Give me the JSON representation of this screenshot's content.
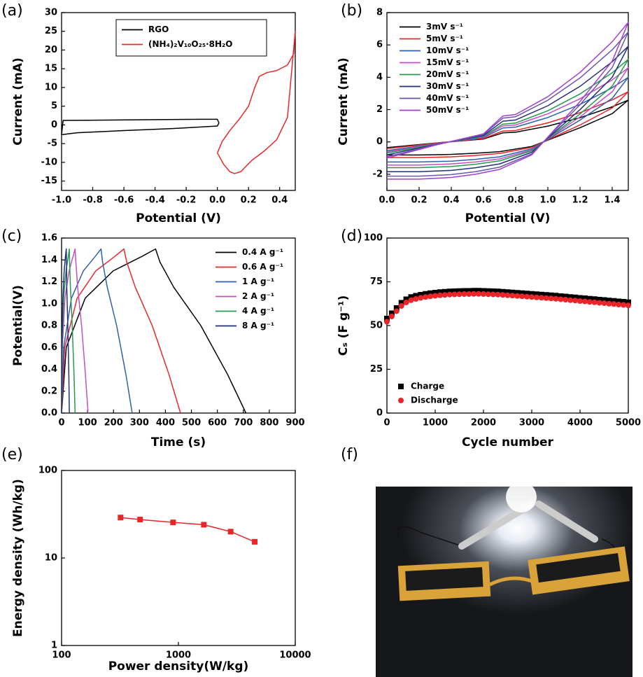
{
  "chart_data": [
    {
      "type": "line",
      "panel": "(a)",
      "xlabel": "Potential (V)",
      "ylabel": "Current (mA)",
      "xlim": [
        -1.0,
        0.5
      ],
      "ylim": [
        -17.5,
        30
      ],
      "xticks": [
        {
          "value": -1,
          "label": "-1.0"
        },
        -0.8,
        -0.6,
        -0.4,
        -0.2,
        {
          "value": 0,
          "label": "0.0"
        },
        0.2,
        0.4
      ],
      "yticks": [
        -15,
        -10,
        -5,
        0,
        5,
        10,
        15,
        20,
        25,
        30
      ],
      "legend": "upper center",
      "legend_frame": true,
      "series": [
        {
          "name": "RGO",
          "color": "#000000",
          "x": [
            -1.0,
            -0.99,
            -0.7,
            -0.4,
            -0.1,
            0.0,
            0.01,
            0.0,
            -0.3,
            -0.6,
            -0.9,
            -1.0
          ],
          "values": [
            -2.6,
            1.2,
            1.3,
            1.4,
            1.5,
            1.5,
            0.5,
            -0.3,
            -1.0,
            -1.5,
            -2.1,
            -2.6
          ]
        },
        {
          "name": "(NH₄)₂V₁₀O₂₅·8H₂O",
          "color": "#e8262a",
          "x": [
            0.0,
            0.04,
            0.08,
            0.11,
            0.15,
            0.22,
            0.3,
            0.38,
            0.45,
            0.5,
            0.49,
            0.45,
            0.38,
            0.32,
            0.27,
            0.24,
            0.2,
            0.14,
            0.08,
            0.03,
            0.0
          ],
          "values": [
            -7.5,
            -10.5,
            -12.5,
            -13.0,
            -12.5,
            -9.5,
            -7.0,
            -4.0,
            2.0,
            25.0,
            19.0,
            16.0,
            14.5,
            14.0,
            13.0,
            10.0,
            5.0,
            1.5,
            -1.5,
            -4.5,
            -7.5
          ]
        }
      ]
    },
    {
      "type": "line",
      "panel": "(b)",
      "xlabel": "Potential (V)",
      "ylabel": "Current (mA)",
      "xlim": [
        0,
        1.5
      ],
      "ylim": [
        -3,
        8
      ],
      "xticks": [
        {
          "value": 0,
          "label": "0.0"
        },
        0.2,
        0.4,
        0.6,
        0.8,
        {
          "value": 1,
          "label": "1.0"
        },
        1.2,
        1.4
      ],
      "yticks": [
        -2,
        0,
        2,
        4,
        6,
        8
      ],
      "legend": "upper left",
      "legend_frame": false,
      "x": [
        0.0,
        0.3,
        0.6,
        0.72,
        0.8,
        1.0,
        1.2,
        1.4,
        1.5,
        1.4,
        1.2,
        1.0,
        0.9,
        0.7,
        0.55,
        0.4,
        0.2,
        0.0
      ],
      "series": [
        {
          "name": "3mV s⁻¹",
          "color": "#000000",
          "values": [
            -0.35,
            -0.07,
            0.18,
            0.56,
            0.6,
            0.98,
            1.5,
            2.17,
            2.59,
            1.75,
            0.88,
            0.11,
            -0.28,
            -0.6,
            -0.7,
            -0.77,
            -0.81,
            -0.81
          ]
        },
        {
          "name": "5mV s⁻¹",
          "color": "#e8262a",
          "values": [
            -0.42,
            -0.08,
            0.21,
            0.67,
            0.71,
            1.18,
            1.81,
            2.6,
            3.11,
            2.1,
            1.05,
            0.13,
            -0.34,
            -0.71,
            -0.84,
            -0.92,
            -0.97,
            -0.97
          ]
        },
        {
          "name": "10mV s⁻¹",
          "color": "#2f5fb0",
          "values": [
            -0.54,
            -0.11,
            0.27,
            0.86,
            0.92,
            1.51,
            2.32,
            3.35,
            4.0,
            2.7,
            1.35,
            0.16,
            -0.43,
            -0.92,
            -1.08,
            -1.19,
            -1.24,
            -1.24
          ]
        },
        {
          "name": "15mV s⁻¹",
          "color": "#c34fc3",
          "values": [
            -0.62,
            -0.12,
            0.31,
            0.99,
            1.05,
            1.74,
            2.67,
            3.84,
            4.59,
            3.1,
            1.55,
            0.19,
            -0.5,
            -1.05,
            -1.24,
            -1.36,
            -1.43,
            -1.43
          ]
        },
        {
          "name": "20mV s⁻¹",
          "color": "#249a4e",
          "values": [
            -0.69,
            -0.14,
            0.35,
            1.1,
            1.17,
            1.93,
            2.97,
            4.28,
            5.11,
            3.45,
            1.73,
            0.21,
            -0.55,
            -1.17,
            -1.38,
            -1.52,
            -1.59,
            -1.59
          ]
        },
        {
          "name": "30mV s⁻¹",
          "color": "#23307a",
          "values": [
            -0.8,
            -0.16,
            0.4,
            1.28,
            1.36,
            2.24,
            3.44,
            4.96,
            5.92,
            4.0,
            2.0,
            0.24,
            -0.64,
            -1.36,
            -1.6,
            -1.76,
            -1.84,
            -1.84
          ]
        },
        {
          "name": "40mV s⁻¹",
          "color": "#6a55b0",
          "values": [
            -0.92,
            -0.18,
            0.46,
            1.47,
            1.56,
            2.58,
            3.96,
            5.7,
            6.81,
            4.6,
            2.3,
            0.28,
            -0.74,
            -1.56,
            -1.84,
            -2.02,
            -2.12,
            -2.12
          ]
        },
        {
          "name": "50mV s⁻¹",
          "color": "#a23fd0",
          "values": [
            -1.0,
            -0.2,
            0.5,
            1.6,
            1.7,
            2.8,
            4.3,
            6.2,
            7.4,
            5.0,
            2.5,
            0.3,
            -0.8,
            -1.7,
            -2.0,
            -2.2,
            -2.3,
            -2.3
          ]
        }
      ]
    },
    {
      "type": "line",
      "panel": "(c)",
      "xlabel": "Time (s)",
      "ylabel": "Potential(V)",
      "xlim": [
        0,
        900
      ],
      "ylim": [
        0,
        1.6
      ],
      "xticks": [
        0,
        100,
        200,
        300,
        400,
        500,
        600,
        700,
        800,
        900
      ],
      "yticks": [
        {
          "value": 0,
          "label": "0.0"
        },
        0.2,
        0.4,
        0.6,
        0.8,
        {
          "value": 1,
          "label": "1.0"
        },
        1.2,
        1.4,
        1.6
      ],
      "legend": "upper right",
      "legend_frame": false,
      "series": [
        {
          "name": "0.4 A g⁻¹",
          "color": "#000000",
          "x": [
            0,
            18,
            91,
            199,
            308,
            362,
            379,
            432,
            536,
            640,
            710
          ],
          "values": [
            0,
            0.6,
            1.05,
            1.3,
            1.43,
            1.5,
            1.38,
            1.15,
            0.8,
            0.35,
            0
          ]
        },
        {
          "name": "0.6 A g⁻¹",
          "color": "#e8262a",
          "x": [
            0,
            12,
            60,
            132,
            204,
            240,
            251,
            284,
            349,
            414,
            458
          ],
          "values": [
            0,
            0.6,
            1.05,
            1.3,
            1.43,
            1.5,
            1.38,
            1.15,
            0.8,
            0.35,
            0
          ]
        },
        {
          "name": "1 A g⁻¹",
          "color": "#2f5fb0",
          "x": [
            0,
            8,
            38,
            84,
            129,
            152,
            158,
            176,
            212,
            248,
            272
          ],
          "values": [
            0,
            0.6,
            1.05,
            1.3,
            1.43,
            1.5,
            1.38,
            1.15,
            0.8,
            0.35,
            0
          ]
        },
        {
          "name": "2 A g⁻¹",
          "color": "#c34fc3",
          "x": [
            0,
            3,
            13,
            29,
            44,
            52,
            55,
            62,
            77,
            92,
            102
          ],
          "values": [
            0,
            0.6,
            1.05,
            1.3,
            1.43,
            1.5,
            1.38,
            1.15,
            0.8,
            0.35,
            0
          ]
        },
        {
          "name": "4 A g⁻¹",
          "color": "#249a4e",
          "x": [
            0,
            2,
            8,
            17,
            26,
            30,
            31,
            34,
            41,
            48,
            52
          ],
          "values": [
            0,
            0.6,
            1.05,
            1.3,
            1.43,
            1.5,
            1.38,
            1.15,
            0.8,
            0.35,
            0
          ]
        },
        {
          "name": "8 A g⁻¹",
          "color": "#23307a",
          "x": [
            0,
            1,
            5,
            10,
            15,
            18,
            19,
            20,
            24,
            28,
            30
          ],
          "values": [
            0,
            0.6,
            1.05,
            1.3,
            1.43,
            1.5,
            1.38,
            1.15,
            0.8,
            0.35,
            0
          ]
        }
      ]
    },
    {
      "type": "scatter",
      "panel": "(d)",
      "xlabel": "Cycle  number",
      "ylabel": "Cₛ (F g⁻¹)",
      "xlim": [
        0,
        5000
      ],
      "ylim": [
        0,
        100
      ],
      "xticks": [
        0,
        1000,
        2000,
        3000,
        4000,
        5000
      ],
      "yticks": [
        0,
        25,
        50,
        75,
        100
      ],
      "legend": "lower left",
      "legend_frame": false,
      "x": [
        0,
        100,
        200,
        300,
        400,
        500,
        600,
        700,
        800,
        900,
        1000,
        1100,
        1200,
        1300,
        1400,
        1500,
        1600,
        1700,
        1800,
        1900,
        2000,
        2100,
        2200,
        2300,
        2400,
        2500,
        2600,
        2700,
        2800,
        2900,
        3000,
        3100,
        3200,
        3300,
        3400,
        3500,
        3600,
        3700,
        3800,
        3900,
        4000,
        4100,
        4200,
        4300,
        4400,
        4500,
        4600,
        4700,
        4800,
        4900,
        5000
      ],
      "series": [
        {
          "name": "Charge",
          "color": "#000000",
          "marker": "square",
          "values": [
            54,
            57,
            60,
            63,
            65,
            66.3,
            67,
            67.6,
            68.1,
            68.5,
            68.8,
            69.1,
            69.3,
            69.5,
            69.6,
            69.7,
            69.8,
            69.8,
            69.9,
            69.9,
            69.8,
            69.7,
            69.6,
            69.5,
            69.3,
            69.1,
            68.9,
            68.7,
            68.5,
            68.3,
            68.1,
            67.9,
            67.7,
            67.5,
            67.3,
            67.1,
            66.8,
            66.6,
            66.3,
            66.1,
            65.8,
            65.6,
            65.3,
            65.1,
            64.8,
            64.6,
            64.3,
            64.1,
            63.8,
            63.6,
            63.3
          ]
        },
        {
          "name": "Discharge",
          "color": "#e8262a",
          "marker": "circle",
          "values": [
            52.2,
            55.2,
            58.2,
            61.2,
            63.2,
            64.5,
            65.2,
            65.8,
            66.3,
            66.7,
            67.0,
            67.3,
            67.5,
            67.7,
            67.8,
            67.9,
            68.0,
            68.0,
            68.1,
            68.1,
            68.0,
            67.9,
            67.8,
            67.7,
            67.5,
            67.3,
            67.1,
            66.9,
            66.7,
            66.5,
            66.3,
            66.1,
            65.9,
            65.7,
            65.5,
            65.3,
            65.0,
            64.8,
            64.5,
            64.3,
            64.0,
            63.8,
            63.5,
            63.3,
            63.0,
            62.8,
            62.5,
            62.3,
            62.0,
            61.8,
            61.5
          ]
        }
      ]
    },
    {
      "type": "line",
      "panel": "(e)",
      "xlabel": "Power density(W/kg)",
      "ylabel": "Energy density (Wh/kg)",
      "xlog": true,
      "ylog": true,
      "xlim": [
        100,
        10000
      ],
      "ylim": [
        1,
        100
      ],
      "xticks": [
        100,
        1000,
        10000
      ],
      "yticks": [
        1,
        10,
        100
      ],
      "series": [
        {
          "color": "#e8262a",
          "marker": "square",
          "x": [
            320,
            470,
            900,
            1650,
            2800,
            4500
          ],
          "values": [
            29,
            27.5,
            25.5,
            24,
            20,
            15.3
          ]
        }
      ]
    }
  ],
  "photo": {
    "label": "(f)"
  }
}
